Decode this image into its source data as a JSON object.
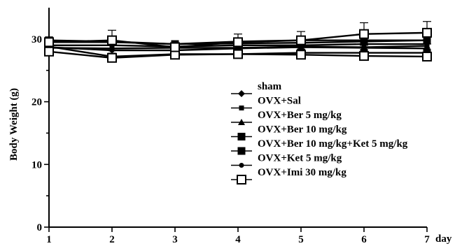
{
  "chart_data": {
    "type": "line",
    "title": "",
    "xlabel": "",
    "x_unit": "day",
    "ylabel": "Body Weight (g)",
    "xlim": [
      1,
      7
    ],
    "ylim": [
      0,
      35
    ],
    "x": [
      1,
      2,
      3,
      4,
      5,
      6,
      7
    ],
    "x_tick_labels": [
      "1",
      "2",
      "3",
      "4",
      "5",
      "6",
      "7"
    ],
    "y_ticks": [
      0,
      10,
      20,
      30
    ],
    "y_tick_labels": [
      "0",
      "10",
      "20",
      "30"
    ],
    "grid": false,
    "legend_placement": "center-right",
    "series": [
      {
        "name": "sham",
        "marker": "diamond",
        "values": [
          29.5,
          29.5,
          29.2,
          29.3,
          29.4,
          29.6,
          29.8
        ]
      },
      {
        "name": "OVX+Sal",
        "marker": "small-square",
        "values": [
          29.0,
          29.0,
          28.8,
          29.0,
          29.0,
          29.2,
          29.2
        ]
      },
      {
        "name": "OVX+Ber 5 mg/kg",
        "marker": "triangle",
        "values": [
          28.6,
          28.5,
          28.6,
          28.6,
          28.8,
          28.7,
          28.9
        ]
      },
      {
        "name": "OVX+Ber 10 mg/kg",
        "marker": "square",
        "values": [
          29.8,
          29.6,
          29.2,
          29.6,
          29.8,
          29.8,
          29.8
        ]
      },
      {
        "name": "OVX+Ber 10 mg/kg+Ket 5 mg/kg",
        "marker": "square",
        "values": [
          28.8,
          27.2,
          27.6,
          27.6,
          27.8,
          27.8,
          27.8
        ]
      },
      {
        "name": "OVX+Ket 5 mg/kg",
        "marker": "circle",
        "values": [
          28.7,
          28.2,
          28.2,
          28.5,
          28.7,
          28.6,
          28.5
        ]
      },
      {
        "name": "OVX+Imi 30 mg/kg",
        "marker": "open-square",
        "values": [
          28.0,
          27.0,
          27.5,
          27.6,
          27.5,
          27.3,
          27.2
        ],
        "error": [
          0.4,
          0.5,
          0.4,
          0.4,
          0.4,
          0.4,
          0.4
        ]
      },
      {
        "name": "",
        "marker": "open-square",
        "values": [
          29.5,
          29.8,
          28.7,
          29.5,
          29.8,
          30.8,
          31.0
        ],
        "error": [
          0.8,
          1.6,
          0.6,
          1.3,
          1.4,
          1.8,
          1.8
        ]
      }
    ]
  }
}
